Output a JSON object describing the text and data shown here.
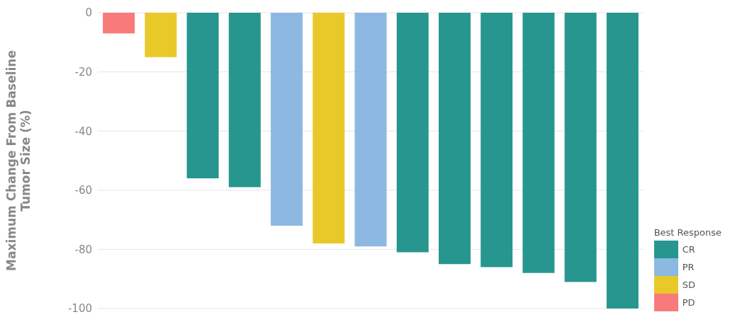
{
  "chart_data": {
    "type": "bar",
    "ylabel": "Maximum Change From Baseline\nTumor Size (%)",
    "legend_title": "Best Response",
    "categories": [
      null,
      null,
      null,
      null,
      null,
      null,
      null,
      null,
      null,
      null,
      null,
      null,
      null
    ],
    "series": [
      {
        "name": "CR",
        "color": "#26968f",
        "values": [
          null,
          null,
          -56,
          -59,
          null,
          null,
          null,
          -81,
          -85,
          -86,
          -88,
          -91,
          -100
        ]
      },
      {
        "name": "PR",
        "color": "#8db8e2",
        "values": [
          null,
          null,
          null,
          null,
          -72,
          null,
          -79,
          null,
          null,
          null,
          null,
          null,
          null
        ]
      },
      {
        "name": "SD",
        "color": "#e9c92a",
        "values": [
          null,
          -15,
          null,
          null,
          null,
          -78,
          null,
          null,
          null,
          null,
          null,
          null,
          null
        ]
      },
      {
        "name": "PD",
        "color": "#f87a7a",
        "values": [
          -7,
          null,
          null,
          null,
          null,
          null,
          null,
          null,
          null,
          null,
          null,
          null,
          null
        ]
      }
    ],
    "stacked": true,
    "ylim": [
      -100,
      0
    ],
    "yticks": [
      -100,
      -80,
      -60,
      -40,
      -20,
      0
    ],
    "grid": "y",
    "legend": "bottom right",
    "tick_labels": "y"
  }
}
